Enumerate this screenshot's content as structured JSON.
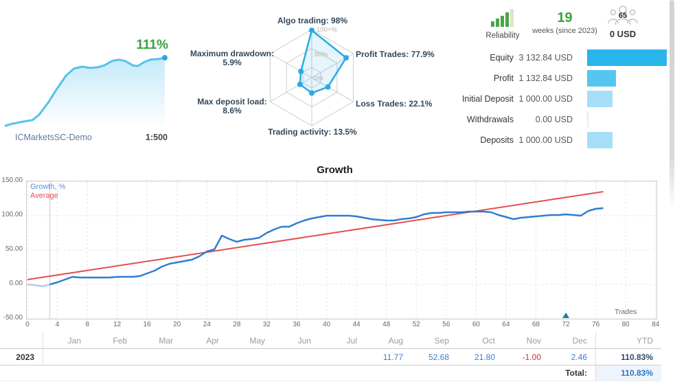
{
  "spark": {
    "percent": "111%",
    "broker": "ICMarketsSC-Demo",
    "leverage": "1:500"
  },
  "radar": {
    "top_label": "Algo trading: 98%",
    "right_top_label": "Profit Trades: 77.9%",
    "right_bottom_label": "Loss Trades: 22.1%",
    "bottom_label": "Trading activity: 13.5%",
    "left_bottom_line1": "Max deposit load:",
    "left_bottom_line2": "8.6%",
    "left_top_line1": "Maximum drawdown:",
    "left_top_line2": "5.9%",
    "ring_outer": "100+%",
    "ring_mid": "50%",
    "ring_inner": "0%"
  },
  "stats": {
    "reliability_label": "Reliability",
    "weeks_value": "19",
    "weeks_label": "weeks (since 2023)",
    "subscribers": "65",
    "price": "0 USD"
  },
  "account": {
    "max": 3132.84,
    "rows": [
      {
        "label": "Equity",
        "value": "3 132.84 USD",
        "amount": 3132.84,
        "color": "#29b5ea"
      },
      {
        "label": "Profit",
        "value": "1 132.84 USD",
        "amount": 1132.84,
        "color": "#55c6f1"
      },
      {
        "label": "Initial Deposit",
        "value": "1 000.00 USD",
        "amount": 1000,
        "color": "#a6def7"
      },
      {
        "label": "Withdrawals",
        "value": "0.00 USD",
        "amount": 0,
        "color": "#d9effb"
      },
      {
        "label": "Deposits",
        "value": "1 000.00 USD",
        "amount": 1000,
        "color": "#a6def7"
      }
    ]
  },
  "growth": {
    "title": "Growth",
    "legend_growth": "Growth, %",
    "legend_average": "Average",
    "axis_label": "Trades"
  },
  "monthly": {
    "year": "2023",
    "months": [
      "Jan",
      "Feb",
      "Mar",
      "Apr",
      "May",
      "Jun",
      "Jul",
      "Aug",
      "Sep",
      "Oct",
      "Nov",
      "Dec",
      "YTD"
    ],
    "values": [
      "",
      "",
      "",
      "",
      "",
      "",
      "",
      "11.77",
      "52.68",
      "21.80",
      "-1.00",
      "2.46",
      "110.83%"
    ],
    "total_label": "Total:",
    "total_value": "110.83%"
  },
  "chart_data": [
    {
      "type": "line",
      "name": "growth-chart",
      "title": "Growth",
      "xlabel": "Trades",
      "ylabel": "Growth, %",
      "xlim": [
        0,
        84
      ],
      "ylim": [
        -50,
        150
      ],
      "grid": true,
      "legend_position": "top-left",
      "x_ticks": [
        0,
        4,
        8,
        12,
        16,
        20,
        24,
        28,
        32,
        36,
        40,
        44,
        48,
        52,
        56,
        60,
        64,
        68,
        72,
        76,
        80,
        84
      ],
      "y_ticks": [
        150,
        100,
        50,
        0,
        -50
      ],
      "y_tick_labels": [
        "150.00",
        "100.00",
        "50.00",
        "0.00",
        "-50.00"
      ],
      "vline_x": 3,
      "pale_segment_end_index": 3,
      "series": [
        {
          "name": "Growth, %",
          "color": "#2d7dd2",
          "values": [
            0,
            -1,
            -3,
            0,
            3,
            7,
            11,
            10,
            10,
            10,
            10,
            10,
            11,
            11,
            11,
            12,
            16,
            20,
            26,
            30,
            32,
            34,
            36,
            41,
            48,
            51,
            71,
            66,
            62,
            65,
            66,
            68,
            75,
            80,
            84,
            84,
            89,
            93,
            96,
            98,
            100,
            100,
            100,
            100,
            99,
            97,
            95,
            94,
            93,
            93,
            95,
            96,
            98,
            102,
            104,
            104,
            105,
            105,
            105,
            106,
            106,
            106,
            105,
            101,
            98,
            95,
            97,
            98,
            99,
            100,
            101,
            101,
            102,
            101,
            100,
            107,
            110,
            111
          ]
        },
        {
          "name": "Average",
          "color": "#e34f4f",
          "x": [
            0,
            77
          ],
          "values": [
            7,
            135
          ]
        }
      ],
      "markers": [
        {
          "x": 72,
          "type": "triangle",
          "color": "#1c7fae"
        }
      ]
    },
    {
      "type": "radar",
      "name": "signal-metrics",
      "axes": [
        "Algo trading",
        "Profit Trades",
        "Loss Trades",
        "Trading activity",
        "Max deposit load",
        "Maximum drawdown"
      ],
      "values": [
        98,
        77.9,
        22.1,
        13.5,
        8.6,
        5.9
      ],
      "rings": [
        "0%",
        "50%",
        "100+%"
      ],
      "line_color": "#29abe2",
      "fill_color": "rgba(41,171,226,0.12)"
    },
    {
      "type": "area",
      "name": "equity-sparkline",
      "final_percent": 111,
      "line_color": "#56c1ed",
      "x": [
        0,
        4,
        10,
        17,
        21,
        27,
        32,
        38,
        43,
        48,
        53,
        58,
        62,
        67,
        71,
        75,
        80,
        83,
        87,
        91,
        96,
        100
      ],
      "values": [
        3,
        6,
        9,
        12,
        20,
        40,
        60,
        82,
        93,
        96,
        94,
        95,
        98,
        105,
        107,
        105,
        98,
        97,
        103,
        107,
        108,
        110
      ]
    },
    {
      "type": "bar",
      "name": "account-summary",
      "categories": [
        "Equity",
        "Profit",
        "Initial Deposit",
        "Withdrawals",
        "Deposits"
      ],
      "values": [
        3132.84,
        1132.84,
        1000,
        0,
        1000
      ],
      "unit": "USD"
    },
    {
      "type": "table",
      "name": "monthly-growth",
      "columns": [
        "Jan",
        "Feb",
        "Mar",
        "Apr",
        "May",
        "Jun",
        "Jul",
        "Aug",
        "Sep",
        "Oct",
        "Nov",
        "Dec",
        "YTD"
      ],
      "rows": [
        {
          "year": "2023",
          "values": [
            null,
            null,
            null,
            null,
            null,
            null,
            null,
            11.77,
            52.68,
            21.8,
            -1.0,
            2.46,
            "110.83%"
          ]
        }
      ],
      "total": "110.83%"
    }
  ]
}
